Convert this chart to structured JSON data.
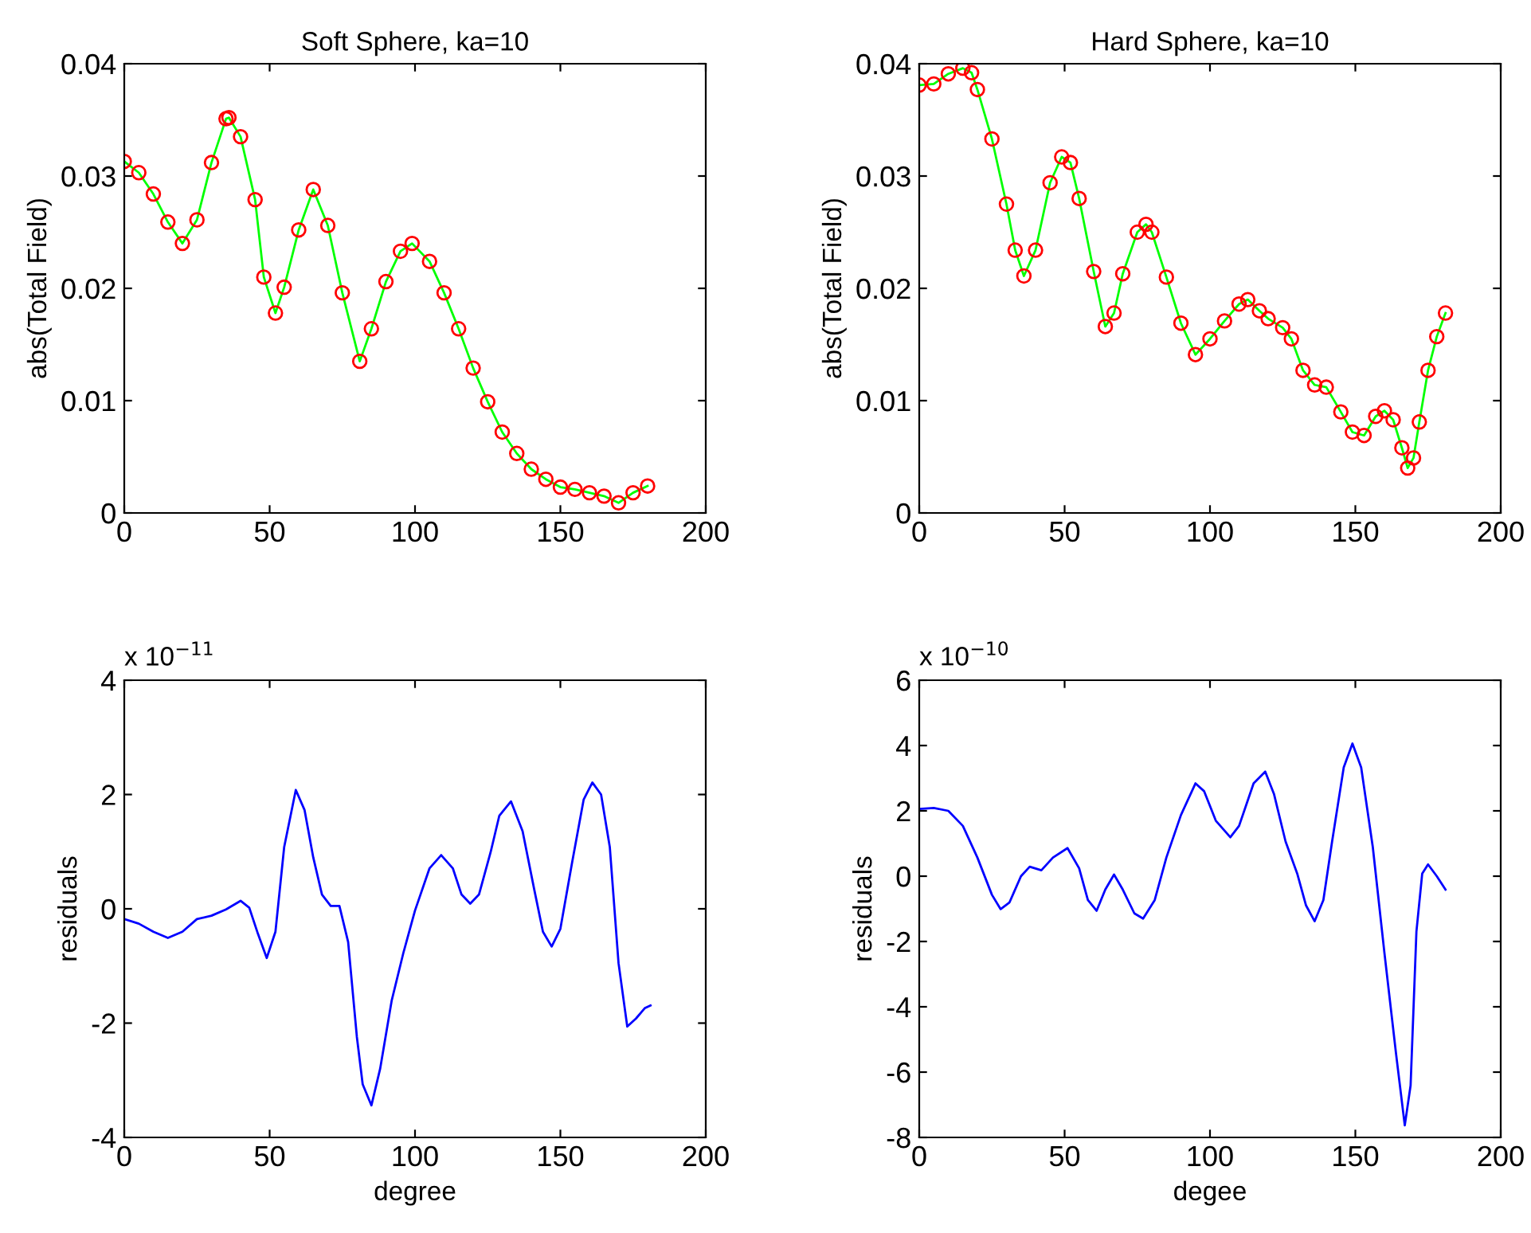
{
  "chart_data": [
    {
      "type": "line",
      "title": "Soft Sphere, ka=10",
      "ylabel": "abs(Total Field)",
      "xlim": [
        0,
        200
      ],
      "xticks": [
        0,
        50,
        100,
        150,
        200
      ],
      "ylim": [
        0,
        0.04
      ],
      "yticks": [
        0,
        0.01,
        0.02,
        0.03,
        0.04
      ],
      "grid": false,
      "legend": false,
      "x": [
        0,
        5,
        10,
        15,
        20,
        25,
        30,
        35,
        36,
        40,
        45,
        48,
        52,
        55,
        60,
        65,
        70,
        75,
        81,
        85,
        90,
        95,
        99,
        105,
        110,
        115,
        120,
        125,
        130,
        135,
        140,
        145,
        150,
        155,
        160,
        165,
        170,
        175,
        180
      ],
      "series": [
        {
          "color": "#00ff00",
          "line_style": "solid",
          "values": [
            0.0313,
            0.0303,
            0.0284,
            0.0259,
            0.024,
            0.0261,
            0.0312,
            0.0351,
            0.0352,
            0.0335,
            0.0279,
            0.021,
            0.0178,
            0.0201,
            0.0252,
            0.0288,
            0.0256,
            0.0196,
            0.0135,
            0.0164,
            0.0206,
            0.0233,
            0.024,
            0.0224,
            0.0196,
            0.0164,
            0.0129,
            0.0099,
            0.0072,
            0.0053,
            0.0039,
            0.003,
            0.0023,
            0.0021,
            0.0018,
            0.0015,
            0.0009,
            0.0018,
            0.0024
          ]
        },
        {
          "type": "scatter",
          "color": "#ff0000",
          "marker": "circle",
          "values": [
            0.0313,
            0.0303,
            0.0284,
            0.0259,
            0.024,
            0.0261,
            0.0312,
            0.0351,
            0.0352,
            0.0335,
            0.0279,
            0.021,
            0.0178,
            0.0201,
            0.0252,
            0.0288,
            0.0256,
            0.0196,
            0.0135,
            0.0164,
            0.0206,
            0.0233,
            0.024,
            0.0224,
            0.0196,
            0.0164,
            0.0129,
            0.0099,
            0.0072,
            0.0053,
            0.0039,
            0.003,
            0.0023,
            0.0021,
            0.0018,
            0.0015,
            0.0009,
            0.0018,
            0.0024
          ]
        }
      ]
    },
    {
      "type": "line",
      "title": "Hard Sphere, ka=10",
      "ylabel": "abs(Total Field)",
      "xlim": [
        0,
        200
      ],
      "xticks": [
        0,
        50,
        100,
        150,
        200
      ],
      "ylim": [
        0,
        0.04
      ],
      "yticks": [
        0,
        0.01,
        0.02,
        0.03,
        0.04
      ],
      "grid": false,
      "legend": false,
      "x": [
        0,
        5,
        10,
        15,
        18,
        20,
        25,
        30,
        33,
        36,
        40,
        45,
        49,
        52,
        55,
        60,
        64,
        67,
        70,
        75,
        78,
        80,
        85,
        90,
        95,
        100,
        105,
        110,
        113,
        117,
        120,
        125,
        128,
        132,
        136,
        140,
        145,
        149,
        153,
        157,
        160,
        163,
        166,
        168,
        170,
        172,
        175,
        178,
        181
      ],
      "series": [
        {
          "color": "#00ff00",
          "line_style": "solid",
          "values": [
            0.0381,
            0.0382,
            0.0391,
            0.0396,
            0.0392,
            0.0377,
            0.0333,
            0.0275,
            0.0234,
            0.0211,
            0.0234,
            0.0294,
            0.0317,
            0.0312,
            0.028,
            0.0215,
            0.0166,
            0.0178,
            0.0213,
            0.025,
            0.0257,
            0.025,
            0.021,
            0.0169,
            0.0141,
            0.0155,
            0.0171,
            0.0186,
            0.019,
            0.018,
            0.0173,
            0.0165,
            0.0155,
            0.0127,
            0.0114,
            0.0112,
            0.009,
            0.0072,
            0.0069,
            0.0086,
            0.0091,
            0.0083,
            0.0058,
            0.004,
            0.0049,
            0.0081,
            0.0127,
            0.0157,
            0.0178
          ]
        },
        {
          "type": "scatter",
          "color": "#ff0000",
          "marker": "circle",
          "values": [
            0.0381,
            0.0382,
            0.0391,
            0.0396,
            0.0392,
            0.0377,
            0.0333,
            0.0275,
            0.0234,
            0.0211,
            0.0234,
            0.0294,
            0.0317,
            0.0312,
            0.028,
            0.0215,
            0.0166,
            0.0178,
            0.0213,
            0.025,
            0.0257,
            0.025,
            0.021,
            0.0169,
            0.0141,
            0.0155,
            0.0171,
            0.0186,
            0.019,
            0.018,
            0.0173,
            0.0165,
            0.0155,
            0.0127,
            0.0114,
            0.0112,
            0.009,
            0.0072,
            0.0069,
            0.0086,
            0.0091,
            0.0083,
            0.0058,
            0.004,
            0.0049,
            0.0081,
            0.0127,
            0.0157,
            0.0178
          ]
        }
      ]
    },
    {
      "type": "line",
      "xlabel": "degree",
      "ylabel": "residuals",
      "annotations": [
        "x 10$^{−11}$"
      ],
      "xlim": [
        0,
        200
      ],
      "xticks": [
        0,
        50,
        100,
        150,
        200
      ],
      "ylim": [
        -4,
        4
      ],
      "yticks": [
        -4,
        -2,
        0,
        2,
        4
      ],
      "grid": false,
      "legend": false,
      "x": [
        0,
        5,
        10,
        15,
        20,
        25,
        30,
        35,
        40,
        43,
        46,
        49,
        52,
        55,
        59,
        62,
        65,
        68,
        71,
        74,
        77,
        80,
        82,
        85,
        88,
        92,
        96,
        100,
        105,
        109,
        113,
        116,
        119,
        122,
        126,
        129,
        133,
        137,
        141,
        144,
        147,
        150,
        154,
        158,
        161,
        164,
        167,
        170,
        173,
        176,
        179,
        181
      ],
      "series": [
        {
          "color": "#0000ff",
          "line_style": "solid",
          "values": [
            -0.18,
            -0.26,
            -0.4,
            -0.51,
            -0.4,
            -0.18,
            -0.12,
            -0.01,
            0.14,
            0.02,
            -0.44,
            -0.86,
            -0.4,
            1.08,
            2.08,
            1.73,
            0.9,
            0.25,
            0.05,
            0.05,
            -0.58,
            -2.24,
            -3.07,
            -3.44,
            -2.8,
            -1.6,
            -0.77,
            -0.03,
            0.71,
            0.94,
            0.71,
            0.25,
            0.09,
            0.25,
            0.99,
            1.63,
            1.88,
            1.36,
            0.34,
            -0.4,
            -0.66,
            -0.35,
            0.8,
            1.91,
            2.21,
            2.0,
            1.08,
            -0.95,
            -2.06,
            -1.92,
            -1.74,
            -1.69
          ]
        }
      ]
    },
    {
      "type": "line",
      "xlabel": "degee",
      "ylabel": "residuals",
      "annotations": [
        "x 10$^{−10}$"
      ],
      "xlim": [
        0,
        200
      ],
      "xticks": [
        0,
        50,
        100,
        150,
        200
      ],
      "ylim": [
        -8,
        6
      ],
      "yticks": [
        -8,
        -6,
        -4,
        -2,
        0,
        2,
        4,
        6
      ],
      "grid": false,
      "legend": false,
      "x": [
        0,
        5,
        10,
        15,
        20,
        25,
        28,
        31,
        35,
        38,
        42,
        46,
        51,
        55,
        58,
        61,
        64,
        67,
        70,
        74,
        77,
        81,
        85,
        90,
        95,
        98,
        102,
        107,
        110,
        115,
        119,
        122,
        126,
        130,
        133,
        136,
        139,
        142,
        146,
        149,
        152,
        156,
        160,
        164,
        167,
        169,
        171,
        173,
        175,
        178,
        181
      ],
      "series": [
        {
          "color": "#0000ff",
          "line_style": "solid",
          "values": [
            2.06,
            2.09,
            2.0,
            1.54,
            0.57,
            -0.57,
            -1.01,
            -0.81,
            0,
            0.29,
            0.18,
            0.57,
            0.86,
            0.24,
            -0.73,
            -1.06,
            -0.41,
            0.05,
            -0.41,
            -1.14,
            -1.3,
            -0.73,
            0.57,
            1.87,
            2.84,
            2.6,
            1.7,
            1.19,
            1.54,
            2.84,
            3.2,
            2.52,
            1.06,
            0.08,
            -0.89,
            -1.38,
            -0.73,
            1.06,
            3.33,
            4.06,
            3.33,
            0.89,
            -2.35,
            -5.44,
            -7.63,
            -6.41,
            -1.7,
            0.08,
            0.36,
            0,
            -0.41
          ]
        }
      ]
    }
  ]
}
